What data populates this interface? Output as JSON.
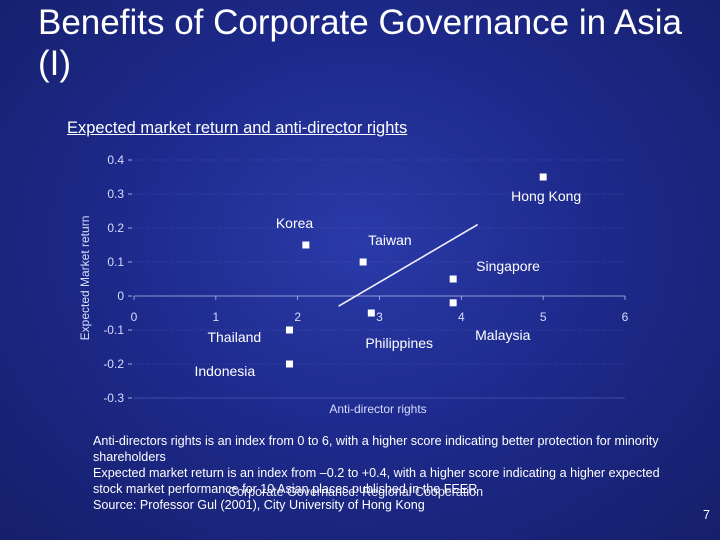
{
  "slide": {
    "title": "Benefits of Corporate Governance in Asia (I)",
    "subtitle": "Expected market return and anti-director rights",
    "notes": [
      "Anti-directors rights is an index from 0 to 6, with a higher score indicating better protection for minority shareholders",
      "Expected market return is an index from –0.2 to +0.4, with a higher score indicating a higher expected stock market performance for 10 Asian places published in the FEER",
      "Source: Professor Gul (2001), City University of Hong Kong"
    ],
    "footer": "Corporate Governance: Regional Cooperation",
    "page_number": "7"
  },
  "chart_data": {
    "type": "scatter",
    "title": "Expected market return and anti-director rights",
    "xlabel": "Anti-director rights",
    "ylabel": "Expected Market return",
    "xlim": [
      0,
      6
    ],
    "ylim": [
      -0.3,
      0.4
    ],
    "x_ticks": [
      "0",
      "1",
      "2",
      "3",
      "4",
      "5",
      "6"
    ],
    "y_ticks": [
      "0.4",
      "0.3",
      "0.2",
      "0.1",
      "0",
      "-0.1",
      "-0.2",
      "-0.3"
    ],
    "points": [
      {
        "label": "Hong Kong",
        "x": 5.0,
        "y": 0.35
      },
      {
        "label": "Korea",
        "x": 2.1,
        "y": 0.15
      },
      {
        "label": "Taiwan",
        "x": 2.8,
        "y": 0.1
      },
      {
        "label": "Singapore",
        "x": 3.9,
        "y": 0.05
      },
      {
        "label": "Malaysia",
        "x": 3.9,
        "y": -0.02
      },
      {
        "label": "Philippines",
        "x": 2.9,
        "y": -0.05
      },
      {
        "label": "Thailand",
        "x": 1.9,
        "y": -0.1
      },
      {
        "label": "Indonesia",
        "x": 1.9,
        "y": -0.2
      }
    ],
    "trendline": {
      "x": [
        2.5,
        4.2
      ],
      "y": [
        -0.03,
        0.21
      ]
    },
    "grid": true,
    "legend": "none"
  }
}
